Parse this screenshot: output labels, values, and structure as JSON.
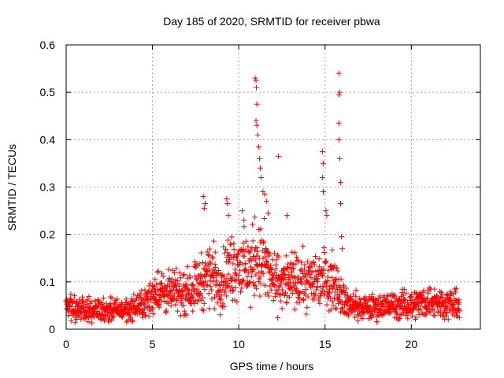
{
  "chart_data": {
    "type": "scatter",
    "title": "Day 185 of 2020, SRMTID for receiver pbwa",
    "xlabel": "GPS time / hours",
    "ylabel": "SRMTID / TECUs",
    "xlim": [
      0,
      24
    ],
    "ylim": [
      0,
      0.6
    ],
    "xticks": [
      0,
      5,
      10,
      15,
      20
    ],
    "xtick_labels": [
      "0",
      "5",
      "10",
      "15",
      "20"
    ],
    "yticks": [
      0,
      0.1,
      0.2,
      0.3,
      0.4,
      0.5,
      0.6
    ],
    "ytick_labels": [
      "0",
      "0.1",
      "0.2",
      "0.3",
      "0.4",
      "0.5",
      "0.6"
    ],
    "grid": true,
    "marker": "+",
    "color": "#ff0000",
    "series": [
      {
        "name": "SRMTID",
        "profile": [
          {
            "x": 0.0,
            "y": 0.045
          },
          {
            "x": 1.0,
            "y": 0.042
          },
          {
            "x": 2.0,
            "y": 0.041
          },
          {
            "x": 3.0,
            "y": 0.04
          },
          {
            "x": 4.0,
            "y": 0.045
          },
          {
            "x": 4.8,
            "y": 0.06
          },
          {
            "x": 5.2,
            "y": 0.085
          },
          {
            "x": 6.0,
            "y": 0.075
          },
          {
            "x": 7.0,
            "y": 0.08
          },
          {
            "x": 7.8,
            "y": 0.1
          },
          {
            "x": 8.3,
            "y": 0.12
          },
          {
            "x": 9.0,
            "y": 0.1
          },
          {
            "x": 9.5,
            "y": 0.13
          },
          {
            "x": 10.0,
            "y": 0.14
          },
          {
            "x": 10.5,
            "y": 0.12
          },
          {
            "x": 11.0,
            "y": 0.15
          },
          {
            "x": 11.5,
            "y": 0.14
          },
          {
            "x": 12.0,
            "y": 0.1
          },
          {
            "x": 13.0,
            "y": 0.1
          },
          {
            "x": 14.0,
            "y": 0.1
          },
          {
            "x": 15.0,
            "y": 0.11
          },
          {
            "x": 15.8,
            "y": 0.09
          },
          {
            "x": 16.2,
            "y": 0.055
          },
          {
            "x": 17.0,
            "y": 0.045
          },
          {
            "x": 18.0,
            "y": 0.048
          },
          {
            "x": 19.0,
            "y": 0.05
          },
          {
            "x": 20.0,
            "y": 0.052
          },
          {
            "x": 21.0,
            "y": 0.06
          },
          {
            "x": 22.0,
            "y": 0.055
          },
          {
            "x": 22.8,
            "y": 0.05
          }
        ],
        "x_range": [
          0.0,
          22.8
        ],
        "n_points": 1600,
        "highlights": [
          {
            "x": 7.95,
            "y": 0.28
          },
          {
            "x": 8.05,
            "y": 0.265
          },
          {
            "x": 8.0,
            "y": 0.255
          },
          {
            "x": 9.3,
            "y": 0.275
          },
          {
            "x": 9.35,
            "y": 0.265
          },
          {
            "x": 9.4,
            "y": 0.24
          },
          {
            "x": 10.2,
            "y": 0.25
          },
          {
            "x": 10.3,
            "y": 0.23
          },
          {
            "x": 10.95,
            "y": 0.53
          },
          {
            "x": 11.0,
            "y": 0.525
          },
          {
            "x": 11.02,
            "y": 0.51
          },
          {
            "x": 11.05,
            "y": 0.475
          },
          {
            "x": 11.0,
            "y": 0.44
          },
          {
            "x": 11.05,
            "y": 0.43
          },
          {
            "x": 11.1,
            "y": 0.41
          },
          {
            "x": 11.15,
            "y": 0.385
          },
          {
            "x": 11.2,
            "y": 0.36
          },
          {
            "x": 11.25,
            "y": 0.34
          },
          {
            "x": 11.3,
            "y": 0.32
          },
          {
            "x": 11.4,
            "y": 0.29
          },
          {
            "x": 11.5,
            "y": 0.285
          },
          {
            "x": 11.6,
            "y": 0.27
          },
          {
            "x": 11.7,
            "y": 0.245
          },
          {
            "x": 12.3,
            "y": 0.365
          },
          {
            "x": 12.8,
            "y": 0.24
          },
          {
            "x": 14.85,
            "y": 0.375
          },
          {
            "x": 14.9,
            "y": 0.35
          },
          {
            "x": 14.85,
            "y": 0.32
          },
          {
            "x": 14.9,
            "y": 0.29
          },
          {
            "x": 15.05,
            "y": 0.25
          },
          {
            "x": 15.1,
            "y": 0.24
          },
          {
            "x": 15.8,
            "y": 0.54
          },
          {
            "x": 15.85,
            "y": 0.5
          },
          {
            "x": 15.8,
            "y": 0.495
          },
          {
            "x": 15.8,
            "y": 0.435
          },
          {
            "x": 15.8,
            "y": 0.4
          },
          {
            "x": 15.85,
            "y": 0.36
          },
          {
            "x": 15.9,
            "y": 0.31
          },
          {
            "x": 15.9,
            "y": 0.265
          },
          {
            "x": 15.95,
            "y": 0.195
          },
          {
            "x": 16.0,
            "y": 0.17
          }
        ]
      }
    ]
  }
}
